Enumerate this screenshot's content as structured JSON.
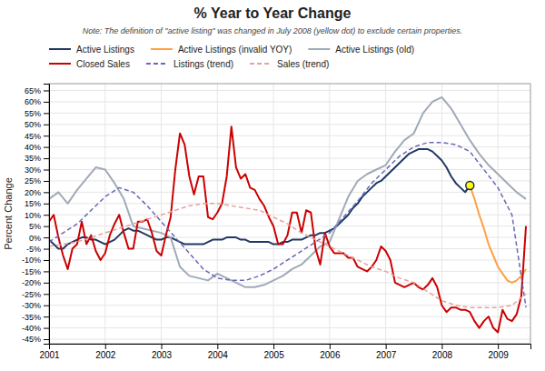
{
  "chart_data": {
    "type": "line",
    "title": "% Year to Year Change",
    "subtitle": "Note: The definition of \"active listing\" was changed in July 2008 (yellow dot) to exclude certain properties.",
    "ylabel": "Percent Change",
    "xlim": [
      2001,
      2009.58
    ],
    "xticks": [
      2001,
      2002,
      2003,
      2004,
      2005,
      2006,
      2007,
      2008,
      2009
    ],
    "ylim": [
      -0.47,
      0.68
    ],
    "yticks": [
      {
        "value": -0.45,
        "label": "-45%"
      },
      {
        "value": -0.4,
        "label": "-40%"
      },
      {
        "value": -0.35,
        "label": "-35%"
      },
      {
        "value": -0.3,
        "label": "-30%"
      },
      {
        "value": -0.25,
        "label": "-25%"
      },
      {
        "value": -0.2,
        "label": "-20%"
      },
      {
        "value": -0.15,
        "label": "-15%"
      },
      {
        "value": -0.1,
        "label": "-10%"
      },
      {
        "value": -0.05,
        "label": "-5%"
      },
      {
        "value": 0.0,
        "label": "0%"
      },
      {
        "value": 0.05,
        "label": "5%"
      },
      {
        "value": 0.1,
        "label": "10%"
      },
      {
        "value": 0.15,
        "label": "15%"
      },
      {
        "value": 0.2,
        "label": "20%"
      },
      {
        "value": 0.25,
        "label": "25%"
      },
      {
        "value": 0.3,
        "label": "30%"
      },
      {
        "value": 0.35,
        "label": "35%"
      },
      {
        "value": 0.4,
        "label": "40%"
      },
      {
        "value": 0.45,
        "label": "45%"
      },
      {
        "value": 0.5,
        "label": "50%"
      },
      {
        "value": 0.55,
        "label": "55%"
      },
      {
        "value": 0.6,
        "label": "60%"
      },
      {
        "value": 0.65,
        "label": "65%"
      }
    ],
    "grid": true,
    "series": [
      {
        "name": "Active Listings",
        "color": "#1F3864",
        "x": [
          2001.0,
          2001.083,
          2001.167,
          2001.25,
          2001.333,
          2001.417,
          2001.5,
          2001.583,
          2001.667,
          2001.75,
          2001.833,
          2001.917,
          2002.0,
          2002.083,
          2002.167,
          2002.25,
          2002.333,
          2002.417,
          2002.5,
          2002.583,
          2002.667,
          2002.75,
          2002.833,
          2002.917,
          2003.0,
          2003.083,
          2003.167,
          2003.25,
          2003.333,
          2003.417,
          2003.5,
          2003.583,
          2003.667,
          2003.75,
          2003.833,
          2003.917,
          2004.0,
          2004.083,
          2004.167,
          2004.25,
          2004.333,
          2004.417,
          2004.5,
          2004.583,
          2004.667,
          2004.75,
          2004.833,
          2004.917,
          2005.0,
          2005.083,
          2005.167,
          2005.25,
          2005.333,
          2005.417,
          2005.5,
          2005.583,
          2005.667,
          2005.75,
          2005.833,
          2005.917,
          2006.0,
          2006.083,
          2006.167,
          2006.25,
          2006.333,
          2006.417,
          2006.5,
          2006.583,
          2006.667,
          2006.75,
          2006.833,
          2006.917,
          2007.0,
          2007.083,
          2007.167,
          2007.25,
          2007.333,
          2007.417,
          2007.5,
          2007.583,
          2007.667,
          2007.75,
          2007.833,
          2007.917,
          2008.0,
          2008.083,
          2008.167,
          2008.25,
          2008.333,
          2008.417,
          2008.5
        ],
        "values": [
          -0.01,
          -0.03,
          -0.05,
          -0.05,
          -0.03,
          -0.02,
          -0.01,
          0.0,
          0.0,
          -0.01,
          -0.01,
          -0.02,
          -0.03,
          -0.02,
          -0.01,
          0.01,
          0.03,
          0.04,
          0.03,
          0.03,
          0.02,
          0.01,
          0.0,
          -0.01,
          -0.01,
          0.0,
          0.0,
          -0.01,
          -0.02,
          -0.03,
          -0.03,
          -0.03,
          -0.03,
          -0.03,
          -0.02,
          -0.01,
          -0.01,
          -0.01,
          0.0,
          0.0,
          0.0,
          -0.01,
          -0.01,
          -0.02,
          -0.02,
          -0.02,
          -0.02,
          -0.02,
          -0.03,
          -0.03,
          -0.02,
          -0.02,
          -0.01,
          -0.01,
          -0.01,
          0.0,
          0.01,
          0.01,
          0.02,
          0.02,
          0.03,
          0.04,
          0.06,
          0.08,
          0.1,
          0.13,
          0.15,
          0.18,
          0.2,
          0.22,
          0.24,
          0.25,
          0.27,
          0.29,
          0.31,
          0.33,
          0.35,
          0.37,
          0.38,
          0.39,
          0.39,
          0.39,
          0.38,
          0.36,
          0.34,
          0.31,
          0.27,
          0.24,
          0.22,
          0.2,
          0.23
        ]
      },
      {
        "name": "Active Listings (invalid YOY)",
        "color": "#FFA040",
        "x": [
          2008.5,
          2008.583,
          2008.667,
          2008.75,
          2008.833,
          2008.917,
          2009.0,
          2009.083,
          2009.167,
          2009.25,
          2009.333,
          2009.417,
          2009.5
        ],
        "values": [
          0.23,
          0.17,
          0.1,
          0.04,
          -0.03,
          -0.08,
          -0.13,
          -0.16,
          -0.19,
          -0.2,
          -0.19,
          -0.17,
          -0.14
        ]
      },
      {
        "name": "Active Listings (old)",
        "color": "#A0AAB8",
        "x": [
          2001.0,
          2001.167,
          2001.333,
          2001.5,
          2001.667,
          2001.833,
          2002.0,
          2002.167,
          2002.333,
          2002.5,
          2002.667,
          2002.833,
          2003.0,
          2003.167,
          2003.333,
          2003.5,
          2003.667,
          2003.833,
          2004.0,
          2004.167,
          2004.333,
          2004.5,
          2004.667,
          2004.833,
          2005.0,
          2005.167,
          2005.333,
          2005.5,
          2005.667,
          2005.833,
          2006.0,
          2006.167,
          2006.333,
          2006.5,
          2006.667,
          2006.833,
          2007.0,
          2007.167,
          2007.333,
          2007.5,
          2007.667,
          2007.833,
          2008.0,
          2008.167,
          2008.333,
          2008.5,
          2008.667,
          2008.833,
          2009.0,
          2009.167,
          2009.333,
          2009.5
        ],
        "values": [
          0.17,
          0.2,
          0.15,
          0.21,
          0.26,
          0.31,
          0.3,
          0.24,
          0.17,
          0.05,
          0.04,
          0.03,
          0.02,
          0.0,
          -0.13,
          -0.17,
          -0.18,
          -0.19,
          -0.16,
          -0.18,
          -0.2,
          -0.22,
          -0.22,
          -0.21,
          -0.19,
          -0.17,
          -0.14,
          -0.12,
          -0.08,
          -0.04,
          -0.02,
          0.08,
          0.18,
          0.25,
          0.28,
          0.3,
          0.32,
          0.38,
          0.43,
          0.46,
          0.55,
          0.6,
          0.62,
          0.57,
          0.5,
          0.43,
          0.37,
          0.32,
          0.28,
          0.24,
          0.2,
          0.17
        ]
      },
      {
        "name": "Closed Sales",
        "color": "#CC0000",
        "x": [
          2001.0,
          2001.083,
          2001.167,
          2001.25,
          2001.333,
          2001.417,
          2001.5,
          2001.583,
          2001.667,
          2001.75,
          2001.833,
          2001.917,
          2002.0,
          2002.083,
          2002.167,
          2002.25,
          2002.333,
          2002.417,
          2002.5,
          2002.583,
          2002.667,
          2002.75,
          2002.833,
          2002.917,
          2003.0,
          2003.083,
          2003.167,
          2003.25,
          2003.333,
          2003.417,
          2003.5,
          2003.583,
          2003.667,
          2003.75,
          2003.833,
          2003.917,
          2004.0,
          2004.083,
          2004.167,
          2004.25,
          2004.333,
          2004.417,
          2004.5,
          2004.583,
          2004.667,
          2004.75,
          2004.833,
          2004.917,
          2005.0,
          2005.083,
          2005.167,
          2005.25,
          2005.333,
          2005.417,
          2005.5,
          2005.583,
          2005.667,
          2005.75,
          2005.833,
          2005.917,
          2006.0,
          2006.083,
          2006.167,
          2006.25,
          2006.333,
          2006.417,
          2006.5,
          2006.583,
          2006.667,
          2006.75,
          2006.833,
          2006.917,
          2007.0,
          2007.083,
          2007.167,
          2007.25,
          2007.333,
          2007.417,
          2007.5,
          2007.583,
          2007.667,
          2007.75,
          2007.833,
          2007.917,
          2008.0,
          2008.083,
          2008.167,
          2008.25,
          2008.333,
          2008.417,
          2008.5,
          2008.583,
          2008.667,
          2008.75,
          2008.833,
          2008.917,
          2009.0,
          2009.083,
          2009.167,
          2009.25,
          2009.333,
          2009.417,
          2009.5
        ],
        "values": [
          0.07,
          0.1,
          0.0,
          -0.08,
          -0.14,
          -0.05,
          -0.03,
          0.07,
          -0.03,
          0.01,
          -0.06,
          -0.1,
          -0.07,
          0.01,
          0.06,
          0.1,
          0.02,
          -0.05,
          -0.05,
          0.07,
          0.07,
          0.08,
          0.02,
          -0.06,
          -0.08,
          0.01,
          0.09,
          0.3,
          0.46,
          0.41,
          0.27,
          0.19,
          0.27,
          0.27,
          0.09,
          0.08,
          0.11,
          0.15,
          0.27,
          0.49,
          0.31,
          0.26,
          0.28,
          0.22,
          0.21,
          0.17,
          0.14,
          0.09,
          0.05,
          -0.03,
          -0.03,
          0.01,
          0.11,
          0.11,
          0.02,
          0.12,
          0.11,
          -0.05,
          -0.12,
          0.02,
          -0.04,
          -0.07,
          -0.07,
          -0.07,
          -0.09,
          -0.09,
          -0.13,
          -0.14,
          -0.15,
          -0.13,
          -0.1,
          -0.04,
          -0.06,
          -0.1,
          -0.2,
          -0.21,
          -0.22,
          -0.21,
          -0.2,
          -0.22,
          -0.23,
          -0.21,
          -0.18,
          -0.22,
          -0.3,
          -0.33,
          -0.31,
          -0.31,
          -0.32,
          -0.32,
          -0.33,
          -0.37,
          -0.4,
          -0.37,
          -0.35,
          -0.4,
          -0.42,
          -0.32,
          -0.36,
          -0.37,
          -0.34,
          -0.26,
          0.05
        ]
      },
      {
        "name": "Listings (trend)",
        "color": "#6868B8",
        "line_style": "dashed",
        "x": [
          2001.0,
          2001.25,
          2001.5,
          2001.75,
          2002.0,
          2002.25,
          2002.5,
          2002.75,
          2003.0,
          2003.25,
          2003.5,
          2003.75,
          2004.0,
          2004.25,
          2004.5,
          2004.75,
          2005.0,
          2005.25,
          2005.5,
          2005.75,
          2006.0,
          2006.25,
          2006.5,
          2006.75,
          2007.0,
          2007.25,
          2007.5,
          2007.75,
          2008.0,
          2008.25,
          2008.5,
          2008.75,
          2009.0,
          2009.25,
          2009.5
        ],
        "values": [
          -0.02,
          0.02,
          0.06,
          0.12,
          0.18,
          0.22,
          0.2,
          0.14,
          0.07,
          0.0,
          -0.07,
          -0.14,
          -0.18,
          -0.19,
          -0.19,
          -0.17,
          -0.14,
          -0.1,
          -0.06,
          -0.02,
          0.02,
          0.09,
          0.16,
          0.24,
          0.3,
          0.36,
          0.4,
          0.42,
          0.42,
          0.41,
          0.38,
          0.3,
          0.22,
          0.1,
          -0.31
        ]
      },
      {
        "name": "Sales (trend)",
        "color": "#E8A0A0",
        "line_style": "dashed",
        "x": [
          2001.0,
          2001.25,
          2001.5,
          2001.75,
          2002.0,
          2002.25,
          2002.5,
          2002.75,
          2003.0,
          2003.25,
          2003.5,
          2003.75,
          2004.0,
          2004.25,
          2004.5,
          2004.75,
          2005.0,
          2005.25,
          2005.5,
          2005.75,
          2006.0,
          2006.25,
          2006.5,
          2006.75,
          2007.0,
          2007.25,
          2007.5,
          2007.75,
          2008.0,
          2008.25,
          2008.5,
          2008.75,
          2009.0,
          2009.25,
          2009.5
        ],
        "values": [
          -0.04,
          -0.03,
          -0.02,
          0.0,
          0.02,
          0.04,
          0.06,
          0.08,
          0.1,
          0.12,
          0.14,
          0.15,
          0.15,
          0.14,
          0.13,
          0.12,
          0.09,
          0.06,
          0.02,
          -0.01,
          -0.04,
          -0.07,
          -0.1,
          -0.13,
          -0.15,
          -0.18,
          -0.2,
          -0.24,
          -0.28,
          -0.3,
          -0.31,
          -0.31,
          -0.31,
          -0.3,
          -0.25
        ]
      }
    ],
    "highlight": {
      "x": 2008.5,
      "y": 0.23,
      "color": "yellow"
    }
  }
}
